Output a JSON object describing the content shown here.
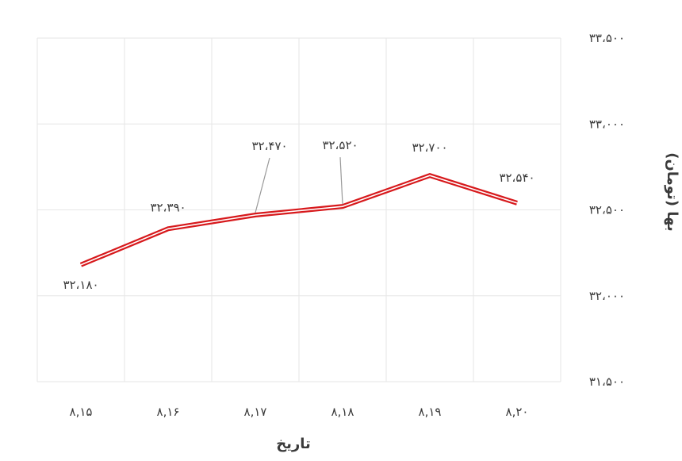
{
  "chart_data": {
    "type": "line",
    "categories": [
      "۸,۱۵",
      "۸,۱۶",
      "۸,۱۷",
      "۸,۱۸",
      "۸,۱۹",
      "۸,۲۰"
    ],
    "values": [
      32180,
      32390,
      32470,
      32520,
      32700,
      32540
    ],
    "data_labels": [
      "۳۲،۱۸۰",
      "۳۲،۳۹۰",
      "۳۲،۴۷۰",
      "۳۲،۵۲۰",
      "۳۲،۷۰۰",
      "۳۲،۵۴۰"
    ],
    "ylim": [
      31500,
      33500
    ],
    "yticks": [
      31500,
      32000,
      32500,
      33000,
      33500
    ],
    "ytick_labels": [
      "۳۱،۵۰۰",
      "۳۲،۰۰۰",
      "۳۲،۵۰۰",
      "۳۳،۰۰۰",
      "۳۳،۵۰۰"
    ],
    "xlabel": "تاریخ",
    "ylabel": "بها (تومان)",
    "y_axis_side": "right",
    "grid": true,
    "line_color": "#d7191c",
    "grid_color": "#e6e6e6"
  }
}
